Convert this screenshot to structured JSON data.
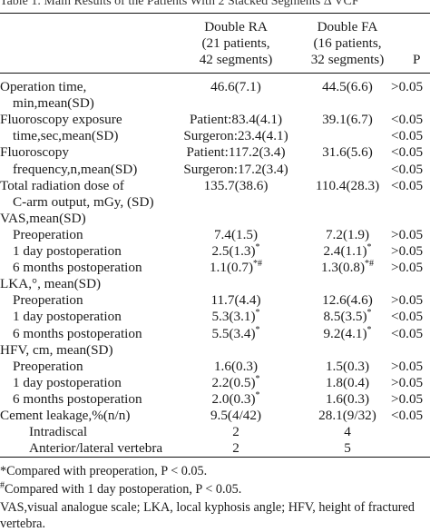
{
  "table_title": "Table 1. Main Results of the Patients With 2 Stacked Segments Δ VCF",
  "header": {
    "col_ra": [
      "Double RA",
      "(21 patients,",
      "42 segments)"
    ],
    "col_fa": [
      "Double FA",
      "(16 patients,",
      "32 segments)"
    ],
    "col_p": "P"
  },
  "rows": [
    {
      "label": "Operation time,",
      "ra": "46.6(7.1)",
      "fa": "44.5(6.6)",
      "p": ">0.05"
    },
    {
      "label": "min,mean(SD)",
      "ra": "",
      "fa": "",
      "p": ""
    },
    {
      "label": "Fluoroscopy exposure",
      "ra": "Patient:83.4(4.1)",
      "fa": "39.1(6.7)",
      "p": "<0.05"
    },
    {
      "label": "time,sec,mean(SD)",
      "ra": "Surgeron:23.4(4.1)",
      "fa": "",
      "p": "<0.05"
    },
    {
      "label": "Fluoroscopy",
      "ra": "Patient:117.2(3.4)",
      "fa": "31.6(5.6)",
      "p": "<0.05"
    },
    {
      "label": "frequency,n,mean(SD)",
      "ra": "Surgeron:17.2(3.4)",
      "fa": "",
      "p": "<0.05"
    },
    {
      "label": "Total radiation dose of",
      "ra": "135.7(38.6)",
      "fa": "110.4(28.3)",
      "p": "<0.05"
    },
    {
      "label": "C-arm output, mGy, (SD)",
      "ra": "",
      "fa": "",
      "p": ""
    },
    {
      "label": "VAS,mean(SD)",
      "ra": "",
      "fa": "",
      "p": ""
    },
    {
      "label": "Preoperation",
      "ra": "7.4(1.5)",
      "fa": "7.2(1.9)",
      "p": ">0.05"
    },
    {
      "label": "1 day postoperation",
      "ra": "2.5(1.3)",
      "ra_sup": "*",
      "fa": "2.4(1.1)",
      "fa_sup": "*",
      "p": ">0.05"
    },
    {
      "label": "6 months postoperation",
      "ra": "1.1(0.7)",
      "ra_sup": "*#",
      "fa": "1.3(0.8)",
      "fa_sup": "*#",
      "p": ">0.05"
    },
    {
      "label": "LKA,°, mean(SD)",
      "ra": "",
      "fa": "",
      "p": ""
    },
    {
      "label": "Preoperation",
      "ra": "11.7(4.4)",
      "fa": "12.6(4.6)",
      "p": ">0.05"
    },
    {
      "label": "1 day postoperation",
      "ra": "5.3(3.1)",
      "ra_sup": "*",
      "fa": "8.5(3.5)",
      "fa_sup": "*",
      "p": "<0.05"
    },
    {
      "label": "6 months postoperation",
      "ra": "5.5(3.4)",
      "ra_sup": "*",
      "fa": "9.2(4.1)",
      "fa_sup": "*",
      "p": "<0.05"
    },
    {
      "label": "HFV, cm, mean(SD)",
      "ra": "",
      "fa": "",
      "p": ""
    },
    {
      "label": "Preoperation",
      "ra": "1.6(0.3)",
      "fa": "1.5(0.3)",
      "p": ">0.05"
    },
    {
      "label": "1 day postoperation",
      "ra": "2.2(0.5)",
      "ra_sup": "*",
      "fa": "1.8(0.4)",
      "p": ">0.05"
    },
    {
      "label": "6 months postoperation",
      "ra": "2.0(0.3)",
      "ra_sup": "*",
      "fa": "1.6(0.3)",
      "p": ">0.05"
    },
    {
      "label": "Cement leakage,%(n/n)",
      "ra": "9.5(4/42)",
      "fa": "28.1(9/32)",
      "p": "<0.05"
    },
    {
      "label": "Intradiscal",
      "ra": "2",
      "fa": "4",
      "p": ""
    },
    {
      "label": "Anterior/lateral vertebra",
      "ra": "2",
      "fa": "5",
      "p": ""
    }
  ],
  "notes": {
    "note1": "*Compared with preoperation, P < 0.05.",
    "note2_sup": "#",
    "note2": "Compared with 1 day postoperation, P < 0.05.",
    "note3": "VAS,visual analogue scale; LKA, local kyphosis angle; HFV, height of fractured",
    "note4": "vertebra."
  }
}
